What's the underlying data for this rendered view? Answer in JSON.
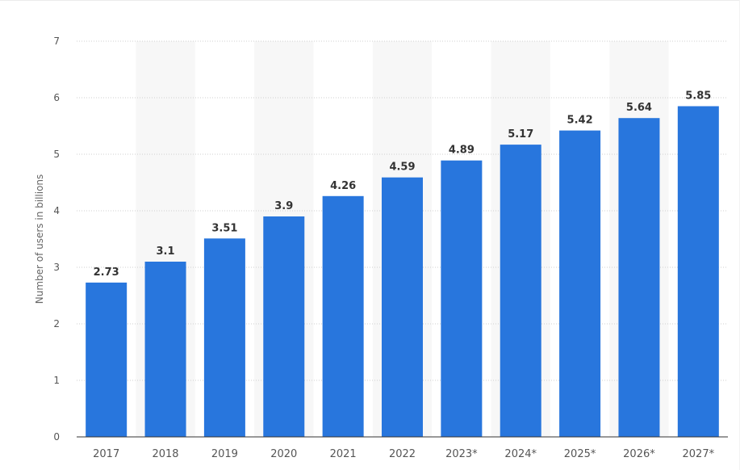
{
  "chart_data": {
    "type": "bar",
    "categories": [
      "2017",
      "2018",
      "2019",
      "2020",
      "2021",
      "2022",
      "2023*",
      "2024*",
      "2025*",
      "2026*",
      "2027*"
    ],
    "values": [
      2.73,
      3.1,
      3.51,
      3.9,
      4.26,
      4.59,
      4.89,
      5.17,
      5.42,
      5.64,
      5.85
    ],
    "value_labels": [
      "2.73",
      "3.1",
      "3.51",
      "3.9",
      "4.26",
      "4.59",
      "4.89",
      "5.17",
      "5.42",
      "5.64",
      "5.85"
    ],
    "title": "",
    "xlabel": "",
    "ylabel": "Number of users in billions",
    "ylim": [
      0,
      7
    ],
    "yticks": [
      0,
      1,
      2,
      3,
      4,
      5,
      6,
      7
    ],
    "grid": true,
    "alternating_column_bands": true,
    "colors": {
      "bar": "#2876dd",
      "band": "#f7f7f7",
      "grid": "#cfcfcf"
    }
  }
}
